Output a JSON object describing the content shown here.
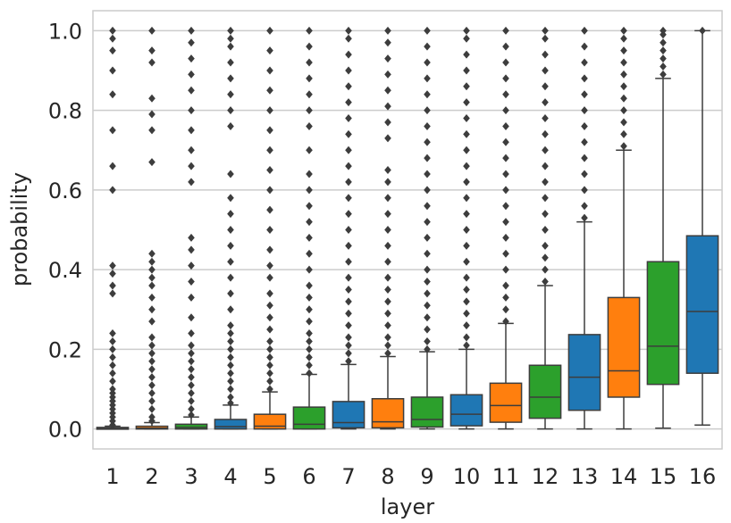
{
  "chart_data": {
    "type": "box",
    "title": "",
    "xlabel": "layer",
    "ylabel": "probability",
    "ylim": [
      -0.05,
      1.05
    ],
    "yticks": [
      "0.0",
      "0.2",
      "0.4",
      "0.6",
      "0.8",
      "1.0"
    ],
    "grid": "horizontal",
    "legend": "none",
    "categories": [
      "1",
      "2",
      "3",
      "4",
      "5",
      "6",
      "7",
      "8",
      "9",
      "10",
      "11",
      "12",
      "13",
      "14",
      "15",
      "16"
    ],
    "colors": [
      "#1f77b4",
      "#ff7f0e",
      "#2ca02c"
    ],
    "boxes": [
      {
        "q1": 0.0,
        "median": 0.001,
        "q3": 0.004,
        "whisker_low": 0.0,
        "whisker_high": 0.007,
        "outliers": [
          0.01,
          0.02,
          0.03,
          0.04,
          0.05,
          0.06,
          0.07,
          0.08,
          0.09,
          0.1,
          0.12,
          0.14,
          0.16,
          0.18,
          0.2,
          0.22,
          0.24,
          0.34,
          0.36,
          0.39,
          0.41,
          0.6,
          0.66,
          0.75,
          0.84,
          0.9,
          0.95,
          0.98,
          1.0
        ]
      },
      {
        "q1": 0.0,
        "median": 0.002,
        "q3": 0.007,
        "whisker_low": 0.0,
        "whisker_high": 0.016,
        "outliers": [
          0.02,
          0.03,
          0.05,
          0.07,
          0.09,
          0.11,
          0.13,
          0.15,
          0.17,
          0.19,
          0.21,
          0.23,
          0.27,
          0.3,
          0.33,
          0.36,
          0.38,
          0.4,
          0.42,
          0.44,
          0.67,
          0.75,
          0.79,
          0.83,
          0.92,
          0.95,
          1.0
        ]
      },
      {
        "q1": 0.0,
        "median": 0.004,
        "q3": 0.012,
        "whisker_low": 0.0,
        "whisker_high": 0.03,
        "outliers": [
          0.035,
          0.05,
          0.07,
          0.09,
          0.11,
          0.13,
          0.15,
          0.17,
          0.19,
          0.21,
          0.24,
          0.28,
          0.33,
          0.37,
          0.41,
          0.45,
          0.48,
          0.62,
          0.66,
          0.7,
          0.75,
          0.8,
          0.85,
          0.89,
          0.93,
          0.97,
          1.0
        ]
      },
      {
        "q1": 0.0,
        "median": 0.006,
        "q3": 0.024,
        "whisker_low": 0.0,
        "whisker_high": 0.06,
        "outliers": [
          0.065,
          0.08,
          0.1,
          0.12,
          0.14,
          0.16,
          0.18,
          0.2,
          0.22,
          0.24,
          0.26,
          0.3,
          0.34,
          0.38,
          0.42,
          0.46,
          0.5,
          0.54,
          0.58,
          0.64,
          0.76,
          0.8,
          0.84,
          0.88,
          0.92,
          0.96,
          0.98,
          1.0
        ]
      },
      {
        "q1": 0.0,
        "median": 0.007,
        "q3": 0.037,
        "whisker_low": 0.0,
        "whisker_high": 0.093,
        "outliers": [
          0.1,
          0.12,
          0.14,
          0.16,
          0.18,
          0.2,
          0.22,
          0.25,
          0.28,
          0.31,
          0.34,
          0.38,
          0.41,
          0.45,
          0.5,
          0.55,
          0.6,
          0.65,
          0.7,
          0.75,
          0.8,
          0.85,
          0.9,
          0.95,
          1.0
        ]
      },
      {
        "q1": 0.0,
        "median": 0.012,
        "q3": 0.055,
        "whisker_low": 0.0,
        "whisker_high": 0.137,
        "outliers": [
          0.14,
          0.16,
          0.18,
          0.2,
          0.22,
          0.24,
          0.27,
          0.3,
          0.33,
          0.36,
          0.4,
          0.44,
          0.48,
          0.52,
          0.56,
          0.6,
          0.64,
          0.7,
          0.76,
          0.8,
          0.84,
          0.88,
          0.92,
          0.96,
          1.0
        ]
      },
      {
        "q1": 0.003,
        "median": 0.016,
        "q3": 0.069,
        "whisker_low": 0.0,
        "whisker_high": 0.162,
        "outliers": [
          0.17,
          0.19,
          0.21,
          0.23,
          0.26,
          0.29,
          0.32,
          0.35,
          0.38,
          0.42,
          0.46,
          0.5,
          0.54,
          0.58,
          0.62,
          0.66,
          0.7,
          0.74,
          0.78,
          0.82,
          0.86,
          0.9,
          0.94,
          0.98,
          1.0
        ]
      },
      {
        "q1": 0.003,
        "median": 0.018,
        "q3": 0.076,
        "whisker_low": 0.0,
        "whisker_high": 0.182,
        "outliers": [
          0.19,
          0.21,
          0.23,
          0.26,
          0.29,
          0.32,
          0.35,
          0.38,
          0.42,
          0.46,
          0.5,
          0.54,
          0.58,
          0.62,
          0.65,
          0.73,
          0.77,
          0.81,
          0.85,
          0.89,
          0.93,
          0.97,
          1.0
        ]
      },
      {
        "q1": 0.005,
        "median": 0.024,
        "q3": 0.08,
        "whisker_low": 0.0,
        "whisker_high": 0.194,
        "outliers": [
          0.2,
          0.22,
          0.25,
          0.28,
          0.31,
          0.34,
          0.37,
          0.4,
          0.44,
          0.48,
          0.52,
          0.56,
          0.6,
          0.64,
          0.68,
          0.72,
          0.76,
          0.8,
          0.84,
          0.88,
          0.92,
          0.96,
          1.0
        ]
      },
      {
        "q1": 0.008,
        "median": 0.037,
        "q3": 0.086,
        "whisker_low": 0.0,
        "whisker_high": 0.2,
        "outliers": [
          0.21,
          0.23,
          0.26,
          0.29,
          0.32,
          0.35,
          0.38,
          0.42,
          0.46,
          0.5,
          0.54,
          0.58,
          0.62,
          0.66,
          0.7,
          0.74,
          0.78,
          0.82,
          0.86,
          0.9,
          0.94,
          0.98,
          1.0
        ]
      },
      {
        "q1": 0.017,
        "median": 0.059,
        "q3": 0.115,
        "whisker_low": 0.0,
        "whisker_high": 0.265,
        "outliers": [
          0.27,
          0.3,
          0.33,
          0.36,
          0.4,
          0.44,
          0.48,
          0.52,
          0.56,
          0.6,
          0.64,
          0.68,
          0.72,
          0.76,
          0.8,
          0.84,
          0.88,
          0.92,
          0.96,
          1.0
        ]
      },
      {
        "q1": 0.027,
        "median": 0.08,
        "q3": 0.16,
        "whisker_low": 0.0,
        "whisker_high": 0.36,
        "outliers": [
          0.37,
          0.4,
          0.43,
          0.46,
          0.5,
          0.54,
          0.58,
          0.62,
          0.66,
          0.7,
          0.74,
          0.78,
          0.82,
          0.86,
          0.9,
          0.94,
          0.98,
          1.0
        ]
      },
      {
        "q1": 0.047,
        "median": 0.13,
        "q3": 0.237,
        "whisker_low": 0.0,
        "whisker_high": 0.52,
        "outliers": [
          0.53,
          0.56,
          0.6,
          0.64,
          0.68,
          0.72,
          0.76,
          0.8,
          0.84,
          0.88,
          0.92,
          0.96,
          1.0
        ]
      },
      {
        "q1": 0.08,
        "median": 0.146,
        "q3": 0.33,
        "whisker_low": 0.0,
        "whisker_high": 0.7,
        "outliers": [
          0.71,
          0.74,
          0.77,
          0.8,
          0.83,
          0.86,
          0.89,
          0.92,
          0.95,
          0.98,
          1.0
        ]
      },
      {
        "q1": 0.112,
        "median": 0.208,
        "q3": 0.42,
        "whisker_low": 0.002,
        "whisker_high": 0.88,
        "outliers": [
          0.89,
          0.91,
          0.93,
          0.95,
          0.97,
          0.99,
          1.0
        ]
      },
      {
        "q1": 0.14,
        "median": 0.295,
        "q3": 0.485,
        "whisker_low": 0.01,
        "whisker_high": 1.0,
        "outliers": [
          1.0
        ]
      }
    ]
  }
}
